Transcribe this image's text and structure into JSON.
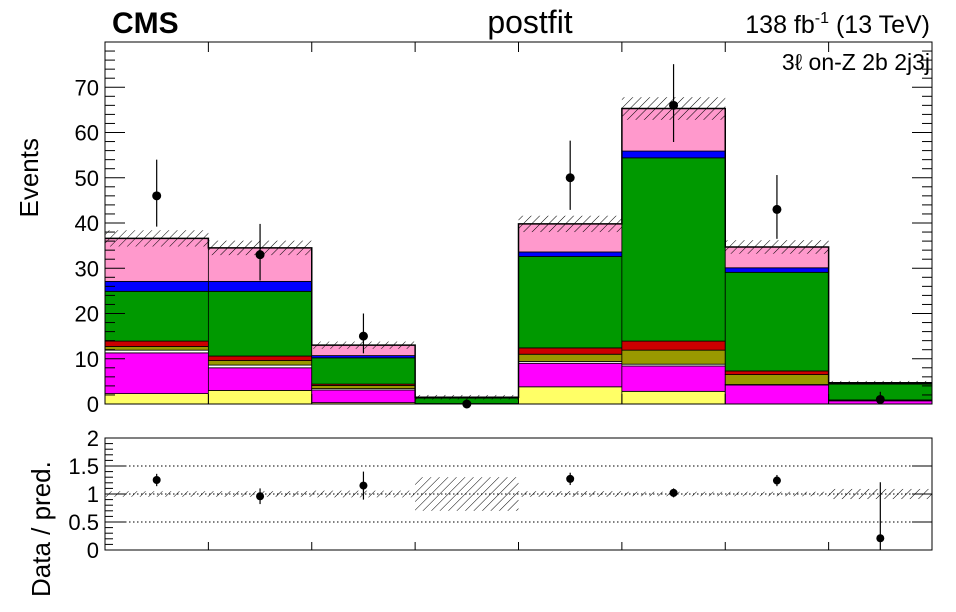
{
  "header": {
    "experiment": "CMS",
    "fit_label": "postfit",
    "lumi_main": "138 fb",
    "lumi_sup": "-1",
    "lumi_energy": " (13 TeV)",
    "region_label": "3ℓ on-Z 2b 2j3j"
  },
  "chart_data": [
    {
      "type": "bar",
      "subtype": "stacked-histogram",
      "ylabel": "Events",
      "ylim": [
        0,
        80
      ],
      "yticks": [
        0,
        10,
        20,
        30,
        40,
        50,
        60,
        70
      ],
      "bins": 8,
      "stack_order": "bottom-to-top",
      "series": [
        {
          "color": "#ffff66",
          "values": [
            2.3,
            3.0,
            0.3,
            0.0,
            3.8,
            2.8,
            0.0,
            0.0
          ]
        },
        {
          "color": "#ff00ff",
          "values": [
            9.0,
            5.0,
            2.8,
            0.0,
            5.2,
            5.6,
            4.2,
            0.7
          ]
        },
        {
          "color": "#ffffff",
          "values": [
            0.6,
            0.6,
            0.3,
            0.0,
            0.4,
            0.4,
            0.1,
            0.1
          ]
        },
        {
          "color": "#999900",
          "values": [
            0.8,
            1.0,
            0.7,
            0.1,
            1.6,
            3.1,
            2.2,
            0.1
          ]
        },
        {
          "color": "#cc0000",
          "values": [
            1.2,
            1.0,
            0.3,
            0.0,
            1.4,
            2.0,
            0.8,
            0.0
          ]
        },
        {
          "color": "#009900",
          "values": [
            11.0,
            14.3,
            5.8,
            1.2,
            20.2,
            40.5,
            21.8,
            3.5
          ]
        },
        {
          "color": "#0000ff",
          "values": [
            2.2,
            2.2,
            0.5,
            0.0,
            1.0,
            1.5,
            1.0,
            0.1
          ]
        },
        {
          "color": "#ff99cc",
          "values": [
            9.5,
            7.4,
            2.3,
            0.2,
            6.2,
            9.4,
            4.6,
            0.2
          ]
        }
      ],
      "total": [
        36.6,
        34.5,
        13.0,
        1.5,
        39.8,
        65.3,
        34.7,
        4.7
      ],
      "total_uncertainty": [
        1.8,
        1.6,
        0.8,
        0.5,
        1.8,
        2.5,
        1.5,
        0.4
      ],
      "data": {
        "values": [
          46,
          33,
          15,
          0,
          50,
          66,
          43,
          1
        ],
        "err_up": [
          8.0,
          6.8,
          5.0,
          0,
          8.2,
          9.1,
          7.6,
          1.7
        ],
        "err_down": [
          6.8,
          5.7,
          3.8,
          0,
          7.1,
          8.1,
          6.5,
          0.8
        ]
      }
    },
    {
      "type": "scatter",
      "subtype": "ratio-panel",
      "ylabel": "Data / pred.",
      "ylim": [
        0,
        2
      ],
      "yticks": [
        "0",
        "0.5",
        "1",
        "1.5",
        "2"
      ],
      "reference_lines": [
        0.5,
        1.0,
        1.5
      ],
      "band_halfwidth": [
        0.05,
        0.05,
        0.06,
        0.3,
        0.05,
        0.04,
        0.04,
        0.09
      ],
      "ratio": [
        1.25,
        0.96,
        1.15,
        null,
        1.27,
        1.02,
        1.24,
        0.21
      ],
      "err_up": [
        0.11,
        0.14,
        0.25,
        0,
        0.11,
        0.08,
        0.1,
        1.0
      ],
      "err_down": [
        0.11,
        0.14,
        0.25,
        0,
        0.11,
        0.08,
        0.1,
        0.21
      ]
    }
  ]
}
